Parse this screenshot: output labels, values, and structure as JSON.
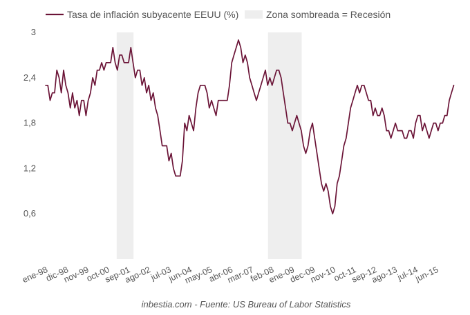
{
  "chart_data": {
    "type": "line",
    "title": "",
    "legend": {
      "line_label": "Tasa de inflación subyacente EEUU (%)",
      "shade_label": "Zona sombreada = Recesión",
      "placement": "top"
    },
    "source": "inbestia.com - Fuente: US Bureau of Labor Statistics",
    "xlabel": "",
    "ylabel": "",
    "ylim": [
      0.0,
      3.0
    ],
    "yticks": [
      0.6,
      1.2,
      1.8,
      2.4,
      3.0
    ],
    "ytick_labels": [
      "0,6",
      "1,2",
      "1,8",
      "2,4",
      "3"
    ],
    "xlim": [
      1998.0,
      2016.0
    ],
    "xticks": [
      {
        "label": "ene-98",
        "x": 1998.0
      },
      {
        "label": "dic-98",
        "x": 1998.92
      },
      {
        "label": "nov-99",
        "x": 1999.83
      },
      {
        "label": "oct-00",
        "x": 2000.75
      },
      {
        "label": "sep-01",
        "x": 2001.67
      },
      {
        "label": "ago-02",
        "x": 2002.58
      },
      {
        "label": "jul-03",
        "x": 2003.5
      },
      {
        "label": "jun-04",
        "x": 2004.42
      },
      {
        "label": "may-05",
        "x": 2005.33
      },
      {
        "label": "abr-06",
        "x": 2006.25
      },
      {
        "label": "mar-07",
        "x": 2007.17
      },
      {
        "label": "feb-08",
        "x": 2008.08
      },
      {
        "label": "ene-09",
        "x": 2009.0
      },
      {
        "label": "dec-09",
        "x": 2009.92
      },
      {
        "label": "nov-10",
        "x": 2010.83
      },
      {
        "label": "oct-11",
        "x": 2011.75
      },
      {
        "label": "sep-12",
        "x": 2012.67
      },
      {
        "label": "ago-13",
        "x": 2013.58
      },
      {
        "label": "jul-14",
        "x": 2014.5
      },
      {
        "label": "jun-15",
        "x": 2015.42
      }
    ],
    "recessions": [
      {
        "start": 2001.17,
        "end": 2001.92
      },
      {
        "start": 2007.92,
        "end": 2009.42
      }
    ],
    "series": [
      {
        "name": "Tasa de inflación subyacente EEUU (%)",
        "color": "#6b1437",
        "points": [
          [
            1998.0,
            2.3
          ],
          [
            1998.1,
            2.3
          ],
          [
            1998.2,
            2.1
          ],
          [
            1998.3,
            2.2
          ],
          [
            1998.4,
            2.2
          ],
          [
            1998.5,
            2.5
          ],
          [
            1998.6,
            2.4
          ],
          [
            1998.7,
            2.2
          ],
          [
            1998.8,
            2.5
          ],
          [
            1998.9,
            2.3
          ],
          [
            1999.0,
            2.2
          ],
          [
            1999.1,
            2.0
          ],
          [
            1999.2,
            2.2
          ],
          [
            1999.3,
            2.0
          ],
          [
            1999.4,
            2.1
          ],
          [
            1999.5,
            1.9
          ],
          [
            1999.6,
            2.1
          ],
          [
            1999.7,
            2.1
          ],
          [
            1999.8,
            1.9
          ],
          [
            1999.9,
            2.1
          ],
          [
            2000.0,
            2.2
          ],
          [
            2000.1,
            2.4
          ],
          [
            2000.2,
            2.3
          ],
          [
            2000.3,
            2.5
          ],
          [
            2000.4,
            2.5
          ],
          [
            2000.5,
            2.6
          ],
          [
            2000.6,
            2.5
          ],
          [
            2000.7,
            2.6
          ],
          [
            2000.8,
            2.6
          ],
          [
            2000.9,
            2.6
          ],
          [
            2001.0,
            2.8
          ],
          [
            2001.1,
            2.6
          ],
          [
            2001.2,
            2.5
          ],
          [
            2001.3,
            2.7
          ],
          [
            2001.4,
            2.7
          ],
          [
            2001.5,
            2.6
          ],
          [
            2001.6,
            2.6
          ],
          [
            2001.7,
            2.6
          ],
          [
            2001.8,
            2.8
          ],
          [
            2001.9,
            2.6
          ],
          [
            2002.0,
            2.4
          ],
          [
            2002.1,
            2.5
          ],
          [
            2002.2,
            2.5
          ],
          [
            2002.3,
            2.3
          ],
          [
            2002.4,
            2.4
          ],
          [
            2002.5,
            2.2
          ],
          [
            2002.6,
            2.3
          ],
          [
            2002.7,
            2.1
          ],
          [
            2002.8,
            2.2
          ],
          [
            2002.9,
            2.0
          ],
          [
            2003.0,
            1.9
          ],
          [
            2003.1,
            1.7
          ],
          [
            2003.2,
            1.5
          ],
          [
            2003.3,
            1.5
          ],
          [
            2003.4,
            1.5
          ],
          [
            2003.5,
            1.3
          ],
          [
            2003.6,
            1.4
          ],
          [
            2003.7,
            1.2
          ],
          [
            2003.8,
            1.1
          ],
          [
            2003.9,
            1.1
          ],
          [
            2004.0,
            1.1
          ],
          [
            2004.1,
            1.3
          ],
          [
            2004.2,
            1.8
          ],
          [
            2004.3,
            1.7
          ],
          [
            2004.4,
            1.9
          ],
          [
            2004.5,
            1.8
          ],
          [
            2004.6,
            1.7
          ],
          [
            2004.7,
            2.0
          ],
          [
            2004.8,
            2.2
          ],
          [
            2004.9,
            2.3
          ],
          [
            2005.0,
            2.3
          ],
          [
            2005.1,
            2.3
          ],
          [
            2005.2,
            2.2
          ],
          [
            2005.3,
            2.0
          ],
          [
            2005.4,
            2.1
          ],
          [
            2005.5,
            2.0
          ],
          [
            2005.6,
            1.9
          ],
          [
            2005.7,
            2.1
          ],
          [
            2005.8,
            2.1
          ],
          [
            2005.9,
            2.1
          ],
          [
            2006.0,
            2.1
          ],
          [
            2006.1,
            2.1
          ],
          [
            2006.2,
            2.3
          ],
          [
            2006.3,
            2.6
          ],
          [
            2006.4,
            2.7
          ],
          [
            2006.5,
            2.8
          ],
          [
            2006.6,
            2.9
          ],
          [
            2006.7,
            2.8
          ],
          [
            2006.8,
            2.6
          ],
          [
            2006.9,
            2.7
          ],
          [
            2007.0,
            2.6
          ],
          [
            2007.1,
            2.4
          ],
          [
            2007.2,
            2.3
          ],
          [
            2007.3,
            2.2
          ],
          [
            2007.4,
            2.1
          ],
          [
            2007.5,
            2.2
          ],
          [
            2007.6,
            2.3
          ],
          [
            2007.7,
            2.4
          ],
          [
            2007.8,
            2.5
          ],
          [
            2007.9,
            2.3
          ],
          [
            2008.0,
            2.4
          ],
          [
            2008.1,
            2.3
          ],
          [
            2008.2,
            2.4
          ],
          [
            2008.3,
            2.5
          ],
          [
            2008.4,
            2.5
          ],
          [
            2008.5,
            2.4
          ],
          [
            2008.6,
            2.2
          ],
          [
            2008.7,
            2.0
          ],
          [
            2008.8,
            1.8
          ],
          [
            2008.9,
            1.8
          ],
          [
            2009.0,
            1.7
          ],
          [
            2009.1,
            1.8
          ],
          [
            2009.2,
            1.9
          ],
          [
            2009.3,
            1.8
          ],
          [
            2009.4,
            1.7
          ],
          [
            2009.5,
            1.5
          ],
          [
            2009.6,
            1.4
          ],
          [
            2009.7,
            1.5
          ],
          [
            2009.8,
            1.7
          ],
          [
            2009.9,
            1.8
          ],
          [
            2010.0,
            1.6
          ],
          [
            2010.1,
            1.4
          ],
          [
            2010.2,
            1.2
          ],
          [
            2010.3,
            1.0
          ],
          [
            2010.4,
            0.9
          ],
          [
            2010.5,
            1.0
          ],
          [
            2010.6,
            0.9
          ],
          [
            2010.7,
            0.7
          ],
          [
            2010.8,
            0.6
          ],
          [
            2010.9,
            0.7
          ],
          [
            2011.0,
            1.0
          ],
          [
            2011.1,
            1.1
          ],
          [
            2011.2,
            1.3
          ],
          [
            2011.3,
            1.5
          ],
          [
            2011.4,
            1.6
          ],
          [
            2011.5,
            1.8
          ],
          [
            2011.6,
            2.0
          ],
          [
            2011.7,
            2.1
          ],
          [
            2011.8,
            2.2
          ],
          [
            2011.9,
            2.3
          ],
          [
            2012.0,
            2.2
          ],
          [
            2012.1,
            2.3
          ],
          [
            2012.2,
            2.3
          ],
          [
            2012.3,
            2.2
          ],
          [
            2012.4,
            2.1
          ],
          [
            2012.5,
            2.1
          ],
          [
            2012.6,
            1.9
          ],
          [
            2012.7,
            2.0
          ],
          [
            2012.8,
            1.9
          ],
          [
            2012.9,
            1.9
          ],
          [
            2013.0,
            2.0
          ],
          [
            2013.1,
            1.9
          ],
          [
            2013.2,
            1.7
          ],
          [
            2013.3,
            1.7
          ],
          [
            2013.4,
            1.6
          ],
          [
            2013.5,
            1.7
          ],
          [
            2013.6,
            1.8
          ],
          [
            2013.7,
            1.7
          ],
          [
            2013.8,
            1.7
          ],
          [
            2013.9,
            1.7
          ],
          [
            2014.0,
            1.6
          ],
          [
            2014.1,
            1.6
          ],
          [
            2014.2,
            1.7
          ],
          [
            2014.3,
            1.7
          ],
          [
            2014.4,
            1.6
          ],
          [
            2014.5,
            1.8
          ],
          [
            2014.6,
            1.9
          ],
          [
            2014.7,
            1.9
          ],
          [
            2014.8,
            1.7
          ],
          [
            2014.9,
            1.8
          ],
          [
            2015.0,
            1.7
          ],
          [
            2015.1,
            1.6
          ],
          [
            2015.2,
            1.7
          ],
          [
            2015.3,
            1.8
          ],
          [
            2015.4,
            1.8
          ],
          [
            2015.5,
            1.7
          ],
          [
            2015.6,
            1.8
          ],
          [
            2015.7,
            1.8
          ],
          [
            2015.8,
            1.9
          ],
          [
            2015.9,
            1.9
          ],
          [
            2016.0,
            2.1
          ],
          [
            2016.1,
            2.2
          ],
          [
            2016.2,
            2.3
          ]
        ]
      }
    ],
    "colors": {
      "line": "#6b1437",
      "recession": "#eeeeee",
      "text": "#555555"
    }
  }
}
